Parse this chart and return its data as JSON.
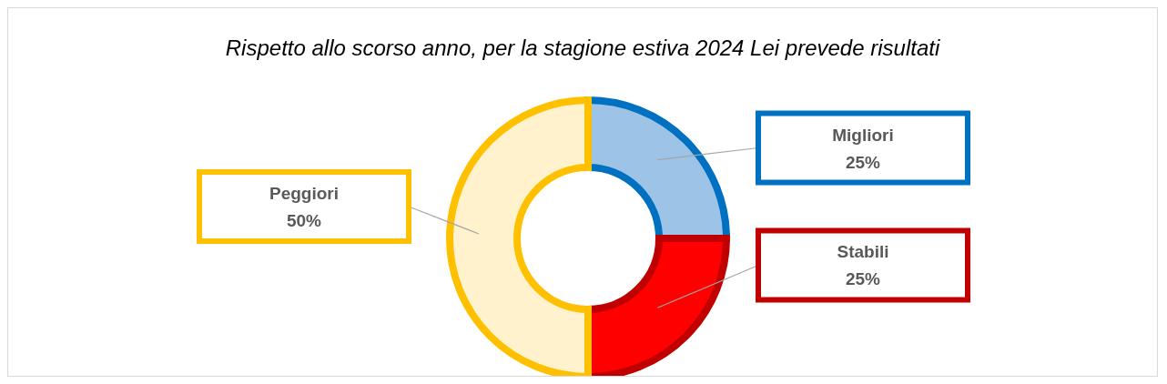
{
  "chart_data": {
    "type": "donut",
    "title": "Rispetto allo scorso anno, per la stagione estiva 2024 Lei prevede risultati",
    "categories": [
      "Migliori",
      "Stabili",
      "Peggiori"
    ],
    "values": [
      25,
      25,
      50
    ],
    "value_labels": [
      "25%",
      "25%",
      "50%"
    ],
    "colors": [
      "#9dc3e6",
      "#ff0000",
      "#fff2cc"
    ]
  }
}
